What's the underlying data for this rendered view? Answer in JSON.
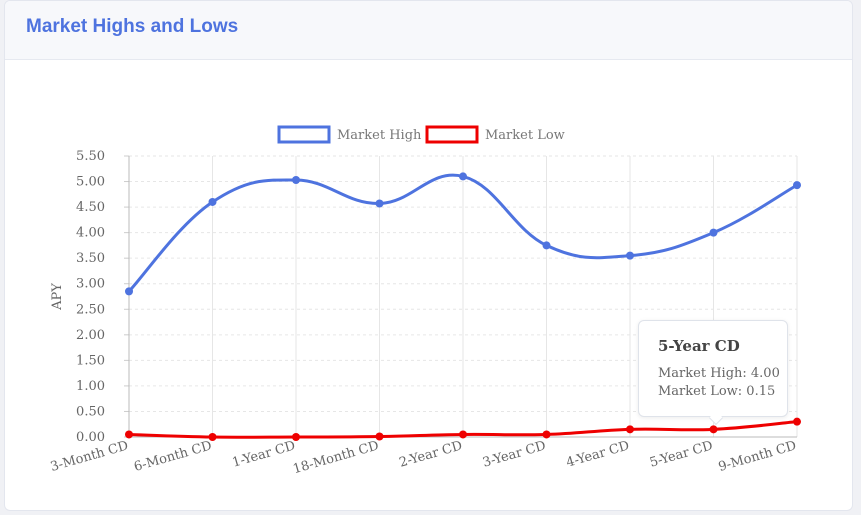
{
  "header": {
    "title": "Market Highs and Lows"
  },
  "chart_data": {
    "type": "line",
    "categories": [
      "3-Month CD",
      "6-Month CD",
      "1-Year CD",
      "18-Month CD",
      "2-Year CD",
      "3-Year CD",
      "4-Year CD",
      "5-Year CD",
      "9-Month CD"
    ],
    "series": [
      {
        "name": "Market High",
        "color": "#4e73df",
        "values": [
          2.85,
          4.6,
          5.03,
          4.57,
          5.1,
          3.75,
          3.55,
          4.0,
          4.93
        ]
      },
      {
        "name": "Market Low",
        "color": "#ee0000",
        "values": [
          0.05,
          0.0,
          0.0,
          0.01,
          0.05,
          0.05,
          0.15,
          0.15,
          0.3
        ]
      }
    ],
    "ylabel": "APY",
    "ylim": [
      0,
      5.5
    ],
    "yticks": [
      "0.00",
      "0.50",
      "1.00",
      "1.50",
      "2.00",
      "2.50",
      "3.00",
      "3.50",
      "4.00",
      "4.50",
      "5.00",
      "5.50"
    ],
    "tooltip": {
      "title": "5-Year CD",
      "lines": [
        "Market High: 4.00",
        "Market Low: 0.15"
      ]
    }
  }
}
